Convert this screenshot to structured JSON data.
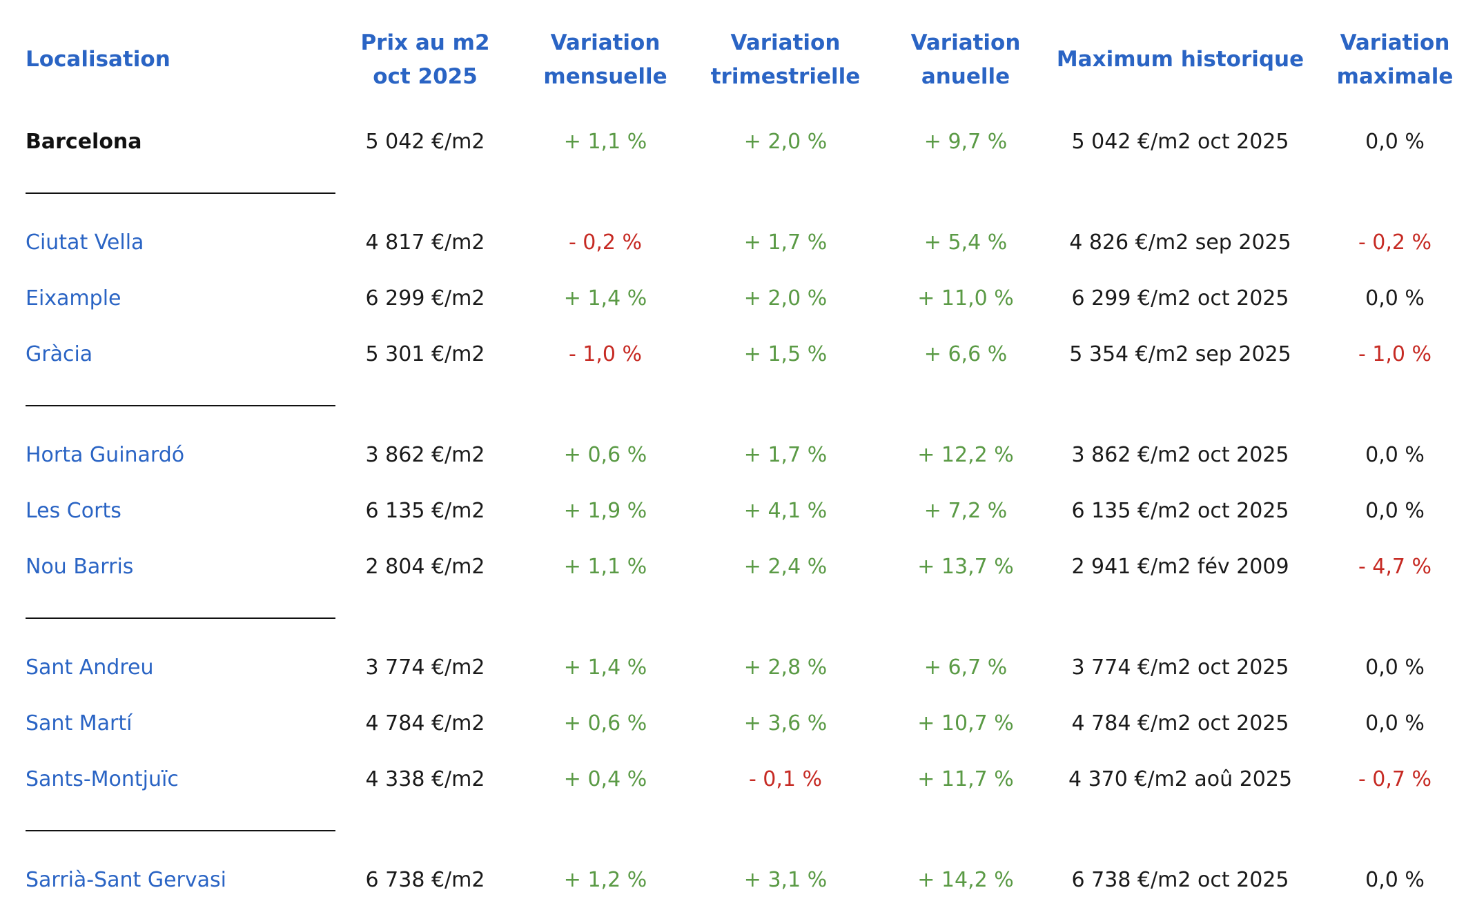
{
  "table": {
    "headers": {
      "location": "Localisation",
      "price_line1": "Prix au m2",
      "price_line2": "oct 2025",
      "monthly_line1": "Variation",
      "monthly_line2": "mensuelle",
      "quarterly_line1": "Variation",
      "quarterly_line2": "trimestrielle",
      "annual_line1": "Variation",
      "annual_line2": "anuelle",
      "max_hist": "Maximum historique",
      "max_var_line1": "Variation",
      "max_var_line2": "maximale"
    },
    "rows": [
      {
        "location": "Barcelona",
        "price": "5 042 €/m2",
        "monthly": "+ 1,1 %",
        "quarterly": "+ 2,0 %",
        "annual": "+ 9,7 %",
        "max_hist": "5 042 €/m2 oct 2025",
        "max_var": "0,0 %"
      },
      {
        "location": "Ciutat Vella",
        "price": "4 817 €/m2",
        "monthly": "- 0,2 %",
        "quarterly": "+ 1,7 %",
        "annual": "+ 5,4 %",
        "max_hist": "4 826 €/m2 sep 2025",
        "max_var": "- 0,2 %"
      },
      {
        "location": "Eixample",
        "price": "6 299 €/m2",
        "monthly": "+ 1,4 %",
        "quarterly": "+ 2,0 %",
        "annual": "+ 11,0 %",
        "max_hist": "6 299 €/m2 oct 2025",
        "max_var": "0,0 %"
      },
      {
        "location": "Gràcia",
        "price": "5 301 €/m2",
        "monthly": "- 1,0 %",
        "quarterly": "+ 1,5 %",
        "annual": "+ 6,6 %",
        "max_hist": "5 354 €/m2 sep 2025",
        "max_var": "- 1,0 %"
      },
      {
        "location": "Horta Guinardó",
        "price": "3 862 €/m2",
        "monthly": "+ 0,6 %",
        "quarterly": "+ 1,7 %",
        "annual": "+ 12,2 %",
        "max_hist": "3 862 €/m2 oct 2025",
        "max_var": "0,0 %"
      },
      {
        "location": "Les Corts",
        "price": "6 135 €/m2",
        "monthly": "+ 1,9 %",
        "quarterly": "+ 4,1 %",
        "annual": "+ 7,2 %",
        "max_hist": "6 135 €/m2 oct 2025",
        "max_var": "0,0 %"
      },
      {
        "location": "Nou Barris",
        "price": "2 804 €/m2",
        "monthly": "+ 1,1 %",
        "quarterly": "+ 2,4 %",
        "annual": "+ 13,7 %",
        "max_hist": "2 941 €/m2 fév 2009",
        "max_var": "- 4,7 %"
      },
      {
        "location": "Sant Andreu",
        "price": "3 774 €/m2",
        "monthly": "+ 1,4 %",
        "quarterly": "+ 2,8 %",
        "annual": "+ 6,7 %",
        "max_hist": "3 774 €/m2 oct 2025",
        "max_var": "0,0 %"
      },
      {
        "location": "Sant Martí",
        "price": "4 784 €/m2",
        "monthly": "+ 0,6 %",
        "quarterly": "+ 3,6 %",
        "annual": "+ 10,7 %",
        "max_hist": "4 784 €/m2 oct 2025",
        "max_var": "0,0 %"
      },
      {
        "location": "Sants-Montjuïc",
        "price": "4 338 €/m2",
        "monthly": "+ 0,4 %",
        "quarterly": "- 0,1 %",
        "annual": "+ 11,7 %",
        "max_hist": "4 370 €/m2 aoû 2025",
        "max_var": "- 0,7 %"
      },
      {
        "location": "Sarrià-Sant Gervasi",
        "price": "6 738 €/m2",
        "monthly": "+ 1,2 %",
        "quarterly": "+ 3,1 %",
        "annual": "+ 14,2 %",
        "max_hist": "6 738 €/m2 oct 2025",
        "max_var": "0,0 %"
      }
    ]
  },
  "colors": {
    "header": "#2a64c4",
    "link": "#2a64c4",
    "positive": "#5a9a45",
    "negative": "#c62a23",
    "text": "#1a1a1a"
  }
}
